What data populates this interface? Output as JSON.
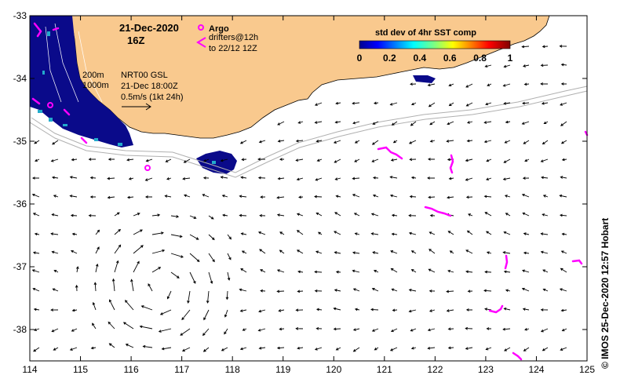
{
  "map": {
    "date": "21-Dec-2020",
    "hour": "16Z",
    "legend_argo": "Argo",
    "legend_drifters_1": "drifters@12h",
    "legend_drifters_2": "to 22/12 12Z",
    "contour_200": "200m",
    "contour_1000": "1000m",
    "product": "NRT00 GSL",
    "product_time": "21-Dec 18:00Z",
    "scale_text": "0.5m/s (1kt 24h)",
    "colorbar_title": "std dev of 4hr SST comp",
    "colorbar_ticks": [
      "0",
      "0.2",
      "0.4",
      "0.6",
      "0.8",
      "1"
    ],
    "x_ticks": [
      "114",
      "115",
      "116",
      "117",
      "118",
      "119",
      "120",
      "121",
      "122",
      "123",
      "124",
      "125"
    ],
    "y_ticks": [
      "-33",
      "-34",
      "-35",
      "-36",
      "-37",
      "-38"
    ],
    "credit": "© IMOS 25-Dec-2020 12:57 Hobart",
    "colors": {
      "land": "#f9c98e",
      "sst_high": "#000080",
      "drifter": "#ff00ff",
      "shelf": "#b0b0b0",
      "arrow": "#000000"
    },
    "lon_range": [
      114,
      125
    ],
    "lat_range": [
      -38.5,
      -33
    ]
  }
}
